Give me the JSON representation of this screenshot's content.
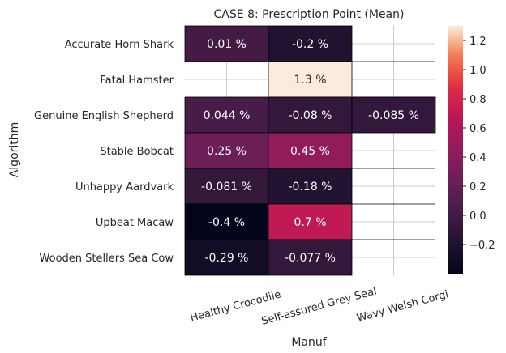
{
  "chart_data": {
    "type": "heatmap",
    "title": "CASE 8: Prescription Point (Mean)",
    "xlabel": "Manuf",
    "ylabel": "Algorithm",
    "columns": [
      "Healthy Crocodile",
      "Self-assured Grey Seal",
      "Wavy Welsh Corgi"
    ],
    "rows": [
      "Accurate Horn Shark",
      "Fatal Hamster",
      "Genuine English Shepherd",
      "Stable Bobcat",
      "Unhappy Aardvark",
      "Upbeat Macaw",
      "Wooden Stellers Sea Cow"
    ],
    "values": [
      [
        0.01,
        -0.2,
        null
      ],
      [
        null,
        1.3,
        null
      ],
      [
        0.044,
        -0.08,
        -0.085
      ],
      [
        0.25,
        0.45,
        null
      ],
      [
        -0.081,
        -0.18,
        null
      ],
      [
        -0.4,
        0.7,
        null
      ],
      [
        -0.29,
        -0.077,
        null
      ]
    ],
    "cell_labels": [
      [
        "0.01 %",
        "-0.2 %",
        ""
      ],
      [
        "",
        "1.3 %",
        ""
      ],
      [
        "0.044 %",
        "-0.08 %",
        "-0.085 %"
      ],
      [
        "0.25 %",
        "0.45 %",
        ""
      ],
      [
        "-0.081 %",
        "-0.18 %",
        ""
      ],
      [
        "-0.4 %",
        "0.7 %",
        ""
      ],
      [
        "-0.29 %",
        "-0.077 %",
        ""
      ]
    ],
    "colorbar": {
      "colormap": "rocket",
      "range": [
        -0.4,
        1.3
      ],
      "ticks": [
        -0.2,
        0.0,
        0.2,
        0.4,
        0.6,
        0.8,
        1.0,
        1.2
      ],
      "tick_labels": [
        "−0.2",
        "0.0",
        "0.2",
        "0.4",
        "0.6",
        "0.8",
        "1.0",
        "1.2"
      ]
    },
    "grid": true
  }
}
